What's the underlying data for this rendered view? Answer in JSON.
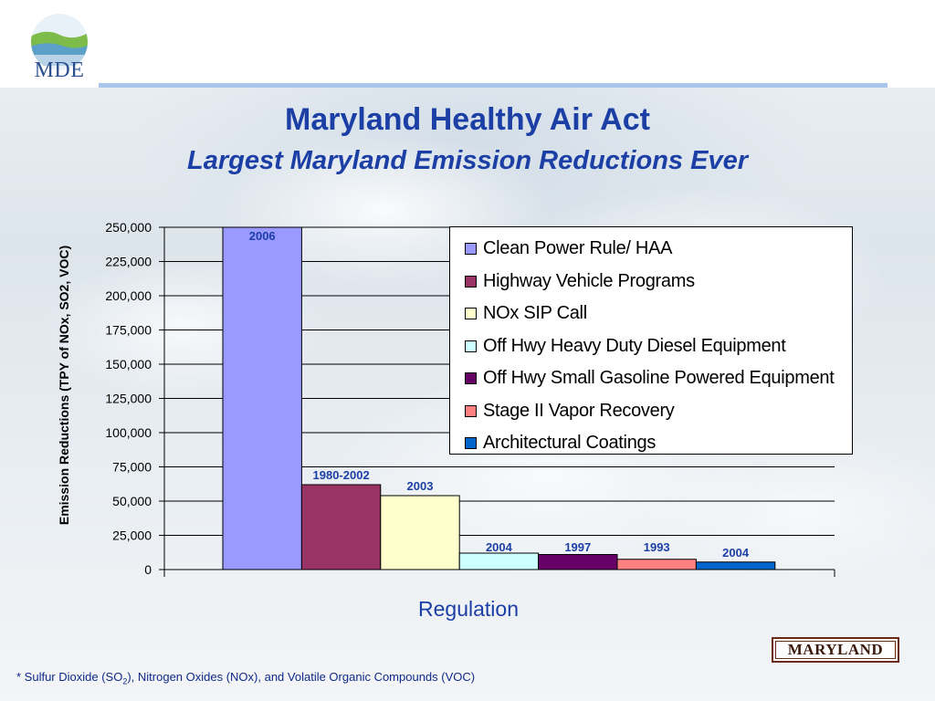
{
  "header": {
    "logo_text": "MDE",
    "title": "Maryland Healthy Air Act",
    "subtitle": "Largest Maryland Emission Reductions Ever"
  },
  "footer": {
    "footnote_pre": "* Sulfur Dioxide (SO",
    "footnote_sub": "2",
    "footnote_post": "), Nitrogen Oxides (NOx), and Volatile Organic Compounds (VOC)",
    "logo_text": "MARYLAND"
  },
  "colors": {
    "title": "#1c3fa6",
    "label": "#1c3fa6",
    "rule": "#a9c6ea"
  },
  "chart_data": {
    "type": "bar",
    "title": "",
    "xlabel": "Regulation",
    "ylabel": "Emission Reductions (TPY of NOx, SO2, VOC)",
    "ylim": [
      0,
      250000
    ],
    "yticks": [
      0,
      25000,
      50000,
      75000,
      100000,
      125000,
      150000,
      175000,
      200000,
      225000,
      250000
    ],
    "ytick_labels": [
      "0",
      "25,000",
      "50,000",
      "75,000",
      "100,000",
      "125,000",
      "150,000",
      "175,000",
      "200,000",
      "225,000",
      "250,000"
    ],
    "grid": true,
    "legend_position": "top-right",
    "series": [
      {
        "name": "Clean Power Rule/ HAA",
        "value": 250000,
        "label": "2006",
        "color": "#9999ff"
      },
      {
        "name": "Highway Vehicle Programs",
        "value": 62000,
        "label": "1980-2002",
        "color": "#993366"
      },
      {
        "name": "NOx SIP Call",
        "value": 54000,
        "label": "2003",
        "color": "#ffffcc"
      },
      {
        "name": "Off Hwy Heavy Duty Diesel Equipment",
        "value": 12000,
        "label": "2004",
        "color": "#ccffff"
      },
      {
        "name": "Off Hwy Small Gasoline Powered Equipment",
        "value": 11000,
        "label": "1997",
        "color": "#660066"
      },
      {
        "name": "Stage II Vapor Recovery",
        "value": 7500,
        "label": "1993",
        "color": "#ff8080"
      },
      {
        "name": "Architectural Coatings",
        "value": 5500,
        "label": "2004",
        "color": "#0066cc"
      }
    ]
  }
}
